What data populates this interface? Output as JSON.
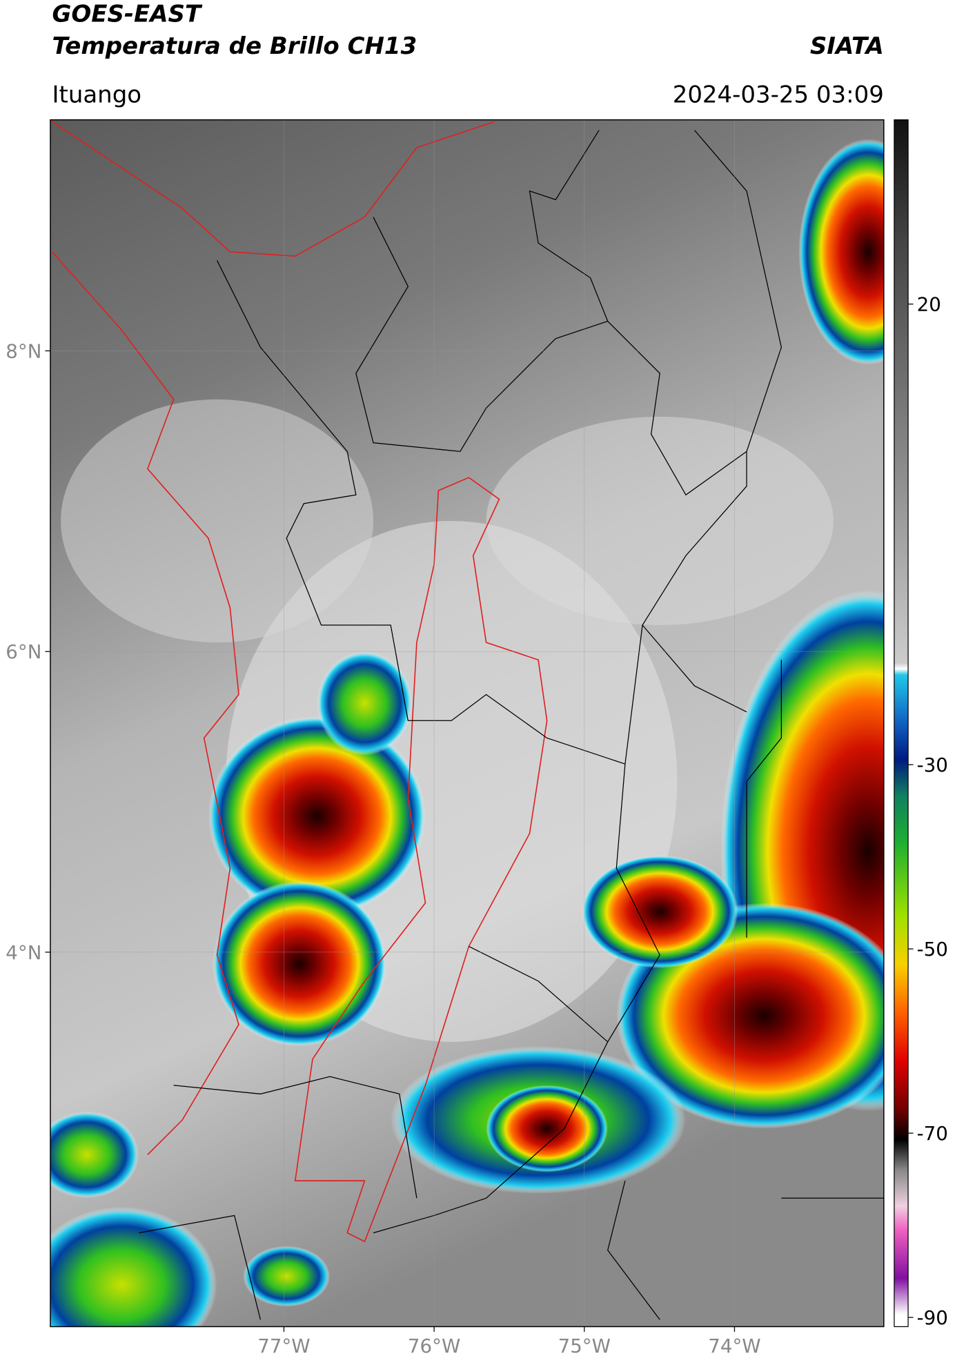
{
  "header": {
    "title": "GOES-EAST",
    "subtitle": "Temperatura de Brillo CH13",
    "org": "SIATA",
    "region": "Ituango",
    "datetime": "2024-03-25 03:09"
  },
  "map": {
    "xlim": [
      -78.555,
      -73.006
    ],
    "ylim": [
      1.509,
      9.537
    ],
    "xticks": [
      {
        "value": -77,
        "label": "77°W"
      },
      {
        "value": -76,
        "label": "76°W"
      },
      {
        "value": -75,
        "label": "75°W"
      },
      {
        "value": -74,
        "label": "74°W"
      }
    ],
    "yticks": [
      {
        "value": 8,
        "label": "8°N"
      },
      {
        "value": 6,
        "label": "6°N"
      },
      {
        "value": 4,
        "label": "4°N"
      }
    ]
  },
  "colorbar": {
    "lim": [
      -91,
      40
    ],
    "ticks": [
      20,
      -30,
      -50,
      -70,
      -90
    ]
  }
}
